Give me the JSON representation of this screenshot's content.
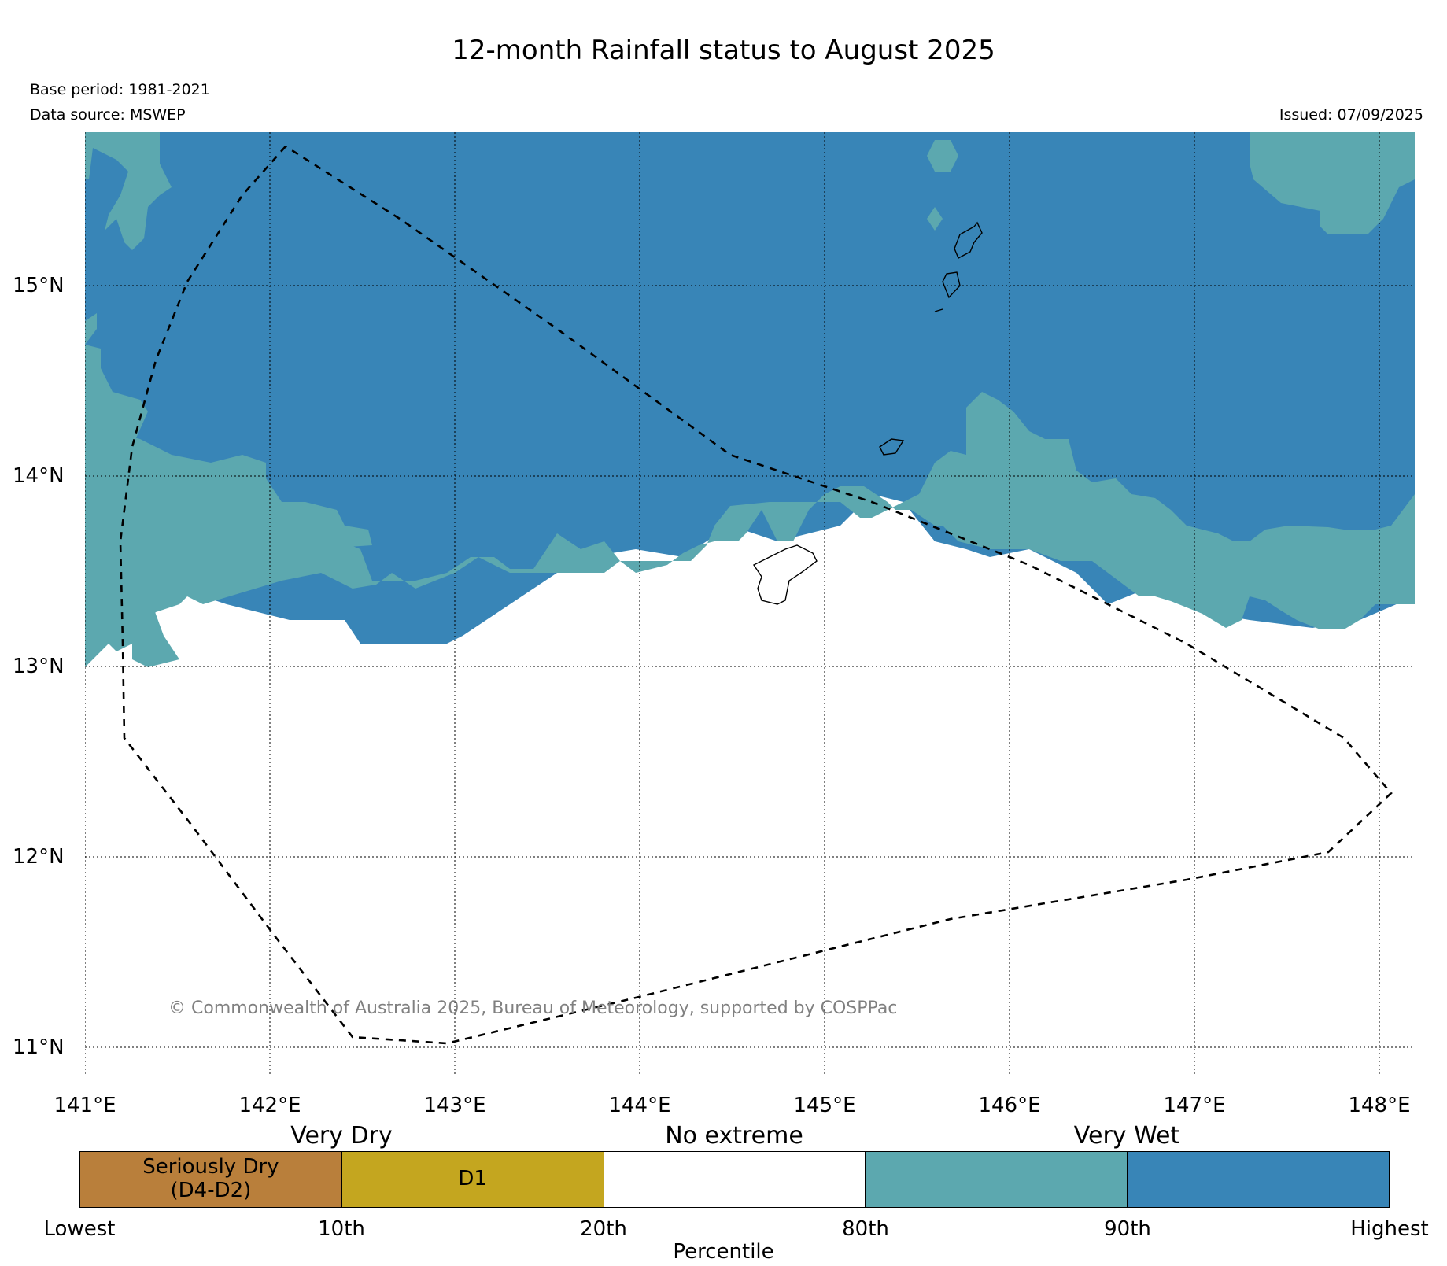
{
  "title": "12-month Rainfall status to August 2025",
  "base_period": "Base period: 1981-2021",
  "data_source": "Data source: MSWEP",
  "issued": "Issued: 07/09/2025",
  "copyright": "© Commonwealth of Australia 2025, Bureau of Meteorology, supported by COSPPac",
  "map": {
    "lat_labels": [
      "15°N",
      "14°N",
      "13°N",
      "12°N",
      "11°N"
    ],
    "lon_labels": [
      "141°E",
      "142°E",
      "143°E",
      "144°E",
      "145°E",
      "146°E",
      "147°E",
      "148°E"
    ]
  },
  "legend": {
    "categories": [
      "Very Dry",
      "No extreme",
      "Very Wet"
    ],
    "boxes": [
      {
        "label": "Seriously Dry\n(D4-D2)",
        "color": "#b97f3b"
      },
      {
        "label": "D1",
        "color": "#c4a61f"
      },
      {
        "label": "",
        "color": "#ffffff"
      },
      {
        "label": "",
        "color": "#5ca8af"
      },
      {
        "label": "",
        "color": "#3885b7"
      }
    ],
    "percentiles": [
      "Lowest",
      "10th",
      "20th",
      "80th",
      "90th",
      "Highest"
    ],
    "axis_label": "Percentile"
  },
  "colors": {
    "very_wet": "#3885b7",
    "wet": "#5ca8af",
    "no_extreme": "#ffffff",
    "d1": "#c4a61f",
    "seriously_dry": "#b97f3b"
  }
}
